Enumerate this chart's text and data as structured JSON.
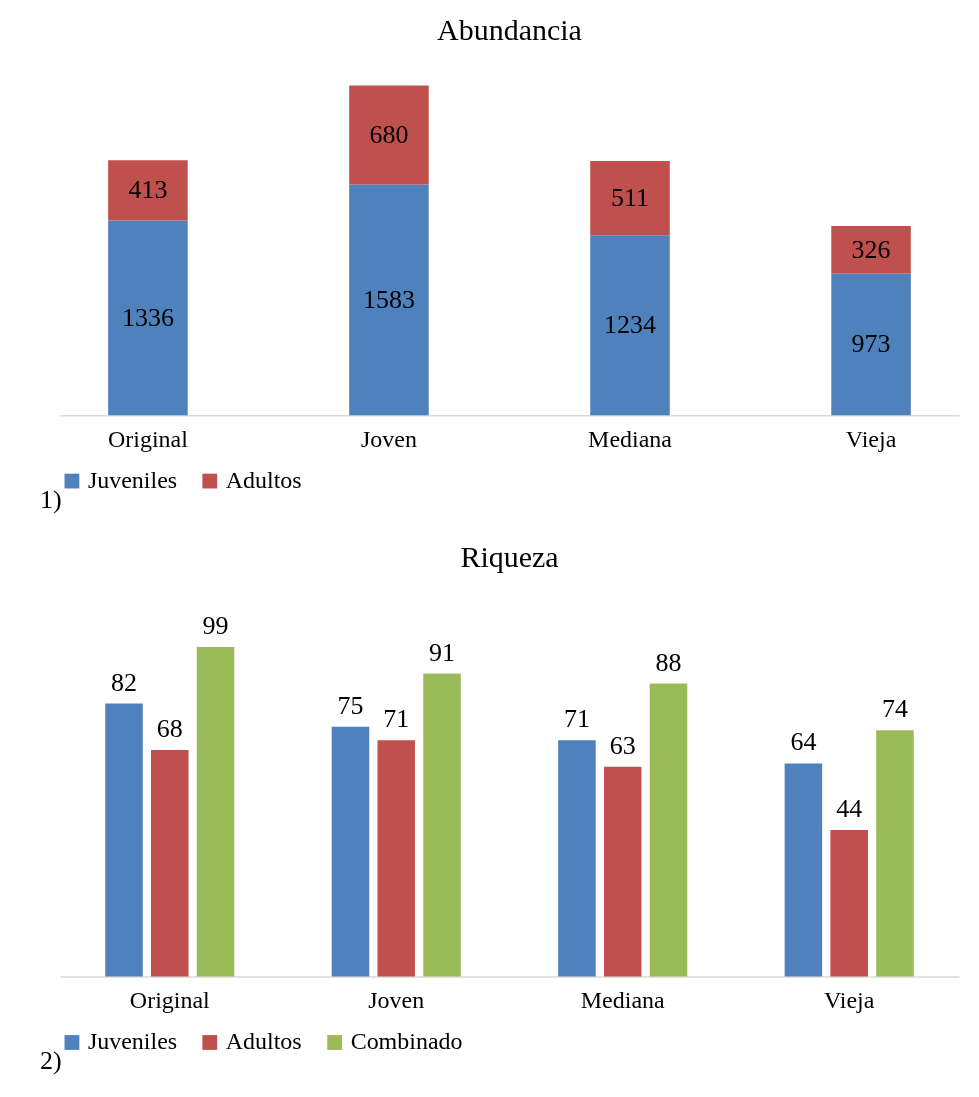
{
  "chart_data": [
    {
      "type": "bar",
      "title": "Abundancia",
      "stacked": true,
      "categories": [
        "Original",
        "Joven",
        "Mediana",
        "Vieja"
      ],
      "data_labels": true,
      "legend": "bottom",
      "grid": false,
      "annotations": [
        "1)"
      ],
      "series": [
        {
          "name": "Juveniles",
          "color": "#4f81bd",
          "values": [
            1336,
            1583,
            1234,
            973
          ]
        },
        {
          "name": "Adultos",
          "color": "#c0504d",
          "values": [
            413,
            680,
            511,
            326
          ]
        }
      ]
    },
    {
      "type": "bar",
      "title": "Riqueza",
      "categories": [
        "Original",
        "Joven",
        "Mediana",
        "Vieja"
      ],
      "data_labels": true,
      "legend": "bottom",
      "grid": false,
      "annotations": [
        "2)"
      ],
      "series": [
        {
          "name": "Juveniles",
          "color": "#4f81bd",
          "values": [
            82,
            75,
            71,
            64
          ]
        },
        {
          "name": "Adultos",
          "color": "#c0504d",
          "values": [
            68,
            71,
            63,
            44
          ]
        },
        {
          "name": "Combinado",
          "color": "#9bbb59",
          "values": [
            99,
            91,
            88,
            74
          ]
        }
      ]
    }
  ]
}
